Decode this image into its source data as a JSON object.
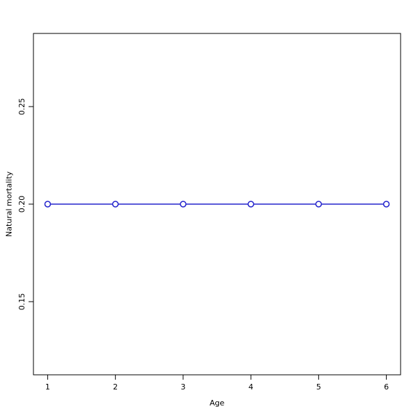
{
  "chart_data": {
    "type": "line",
    "title": "",
    "xlabel": "Age",
    "ylabel": "Natural mortality",
    "x": [
      1,
      2,
      3,
      4,
      5,
      6
    ],
    "y": [
      0.2,
      0.2,
      0.2,
      0.2,
      0.2,
      0.2
    ],
    "xticks": [
      1,
      2,
      3,
      4,
      5,
      6
    ],
    "xtick_labels": [
      "1",
      "2",
      "3",
      "4",
      "5",
      "6"
    ],
    "yticks": [
      0.15,
      0.2,
      0.25
    ],
    "ytick_labels": [
      "0.15",
      "0.20",
      "0.25"
    ],
    "xlim": [
      0.79,
      6.21
    ],
    "ylim": [
      0.1125,
      0.2875
    ],
    "grid": false,
    "legend": null,
    "marker": "open-circle",
    "marker_fill": "#FFFFFF",
    "line_color": "#2222CC",
    "axis_color": "#000000",
    "text_color": "#000000",
    "background": "#FFFFFF"
  }
}
